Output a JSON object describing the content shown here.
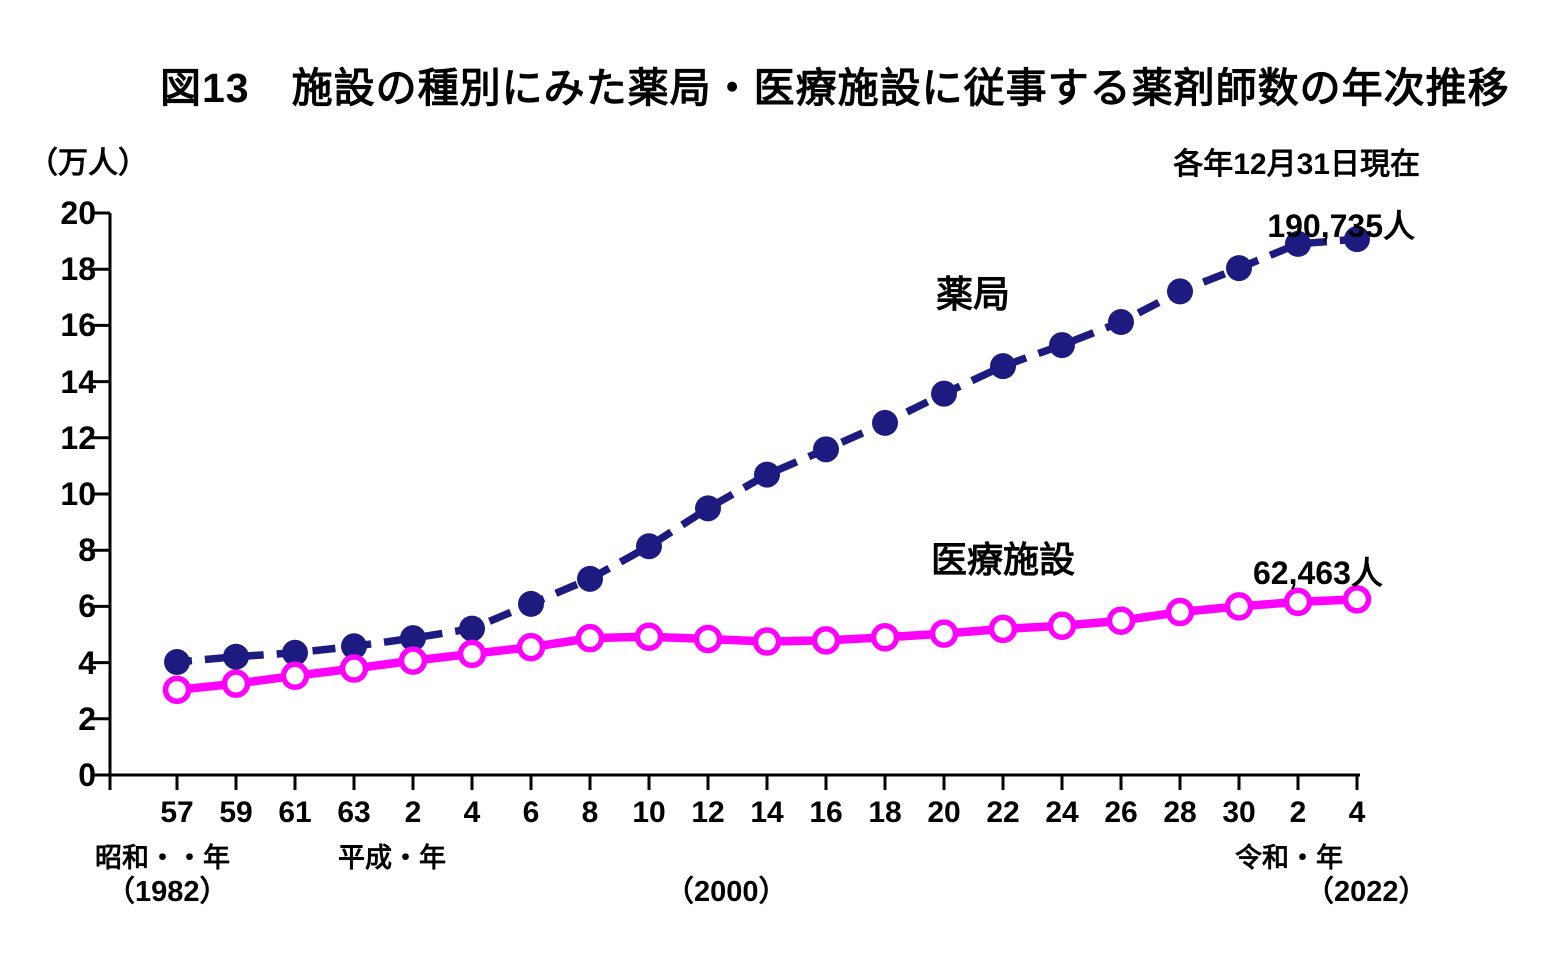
{
  "title": "図13　施設の種別にみた薬局・医療施設に従事する薬剤師数の年次推移",
  "unit_label": "（万人）",
  "date_note": "各年12月31日現在",
  "chart_data": {
    "type": "line",
    "title": "図13　施設の種別にみた薬局・医療施設に従事する薬剤師数の年次推移",
    "ylabel": "（万人）",
    "note": "各年12月31日現在",
    "ylim": [
      0,
      20
    ],
    "ytick_step": 2,
    "grid": false,
    "x_categories": [
      "57",
      "59",
      "61",
      "63",
      "2",
      "4",
      "6",
      "8",
      "10",
      "12",
      "14",
      "16",
      "18",
      "20",
      "22",
      "24",
      "26",
      "28",
      "30",
      "2",
      "4"
    ],
    "era_labels": [
      "昭和・・年",
      "平成・年",
      "令和・年"
    ],
    "era_years": [
      "（1982）",
      "（2000）",
      "（2022）"
    ],
    "series": [
      {
        "name": "薬局",
        "color": "#1e1b80",
        "line": "dashed",
        "marker": "filled",
        "values": [
          4.02,
          4.21,
          4.35,
          4.58,
          4.87,
          5.21,
          6.09,
          6.98,
          8.14,
          9.49,
          10.69,
          11.59,
          12.53,
          13.57,
          14.55,
          15.3,
          16.12,
          17.21,
          18.04,
          18.9,
          19.07
        ],
        "end_label": "190,735人"
      },
      {
        "name": "医療施設",
        "color": "#ff00ff",
        "line": "solid",
        "marker": "open",
        "values": [
          3.03,
          3.25,
          3.53,
          3.79,
          4.07,
          4.31,
          4.55,
          4.87,
          4.92,
          4.84,
          4.75,
          4.79,
          4.9,
          5.03,
          5.2,
          5.31,
          5.49,
          5.8,
          6.0,
          6.16,
          6.25
        ],
        "end_label": "62,463人"
      }
    ]
  }
}
